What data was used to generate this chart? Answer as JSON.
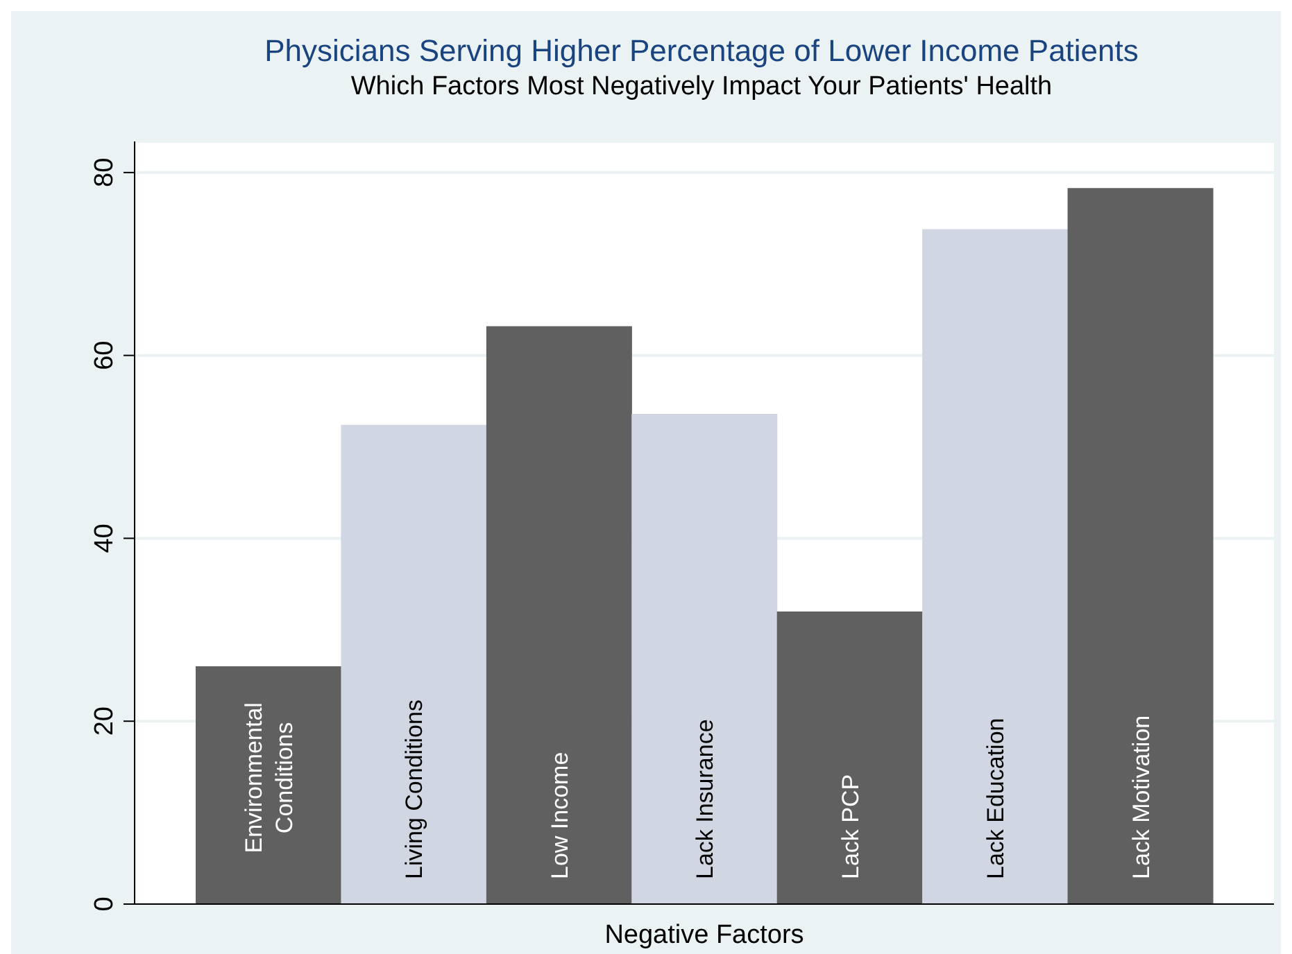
{
  "chart_data": {
    "type": "bar",
    "title": "Physicians Serving Higher Percentage of Lower Income Patients",
    "subtitle": "Which Factors Most Negatively Impact Your Patients' Health",
    "xlabel": "Negative Factors",
    "categories": [
      "Environmental Conditions",
      "Living Conditions",
      "Low Income",
      "Lack Insurance",
      "Lack PCP",
      "Lack Education",
      "Lack Motivation"
    ],
    "values": [
      26,
      52.4,
      63.2,
      53.6,
      32,
      73.8,
      78.3
    ],
    "colors": [
      "#606060",
      "#d0d6e2",
      "#606060",
      "#d0d6e2",
      "#606060",
      "#d0d6e2",
      "#606060"
    ],
    "ylim": [
      0,
      83.4
    ],
    "yticks": [
      0,
      20,
      40,
      60,
      80
    ],
    "grid": "y"
  }
}
